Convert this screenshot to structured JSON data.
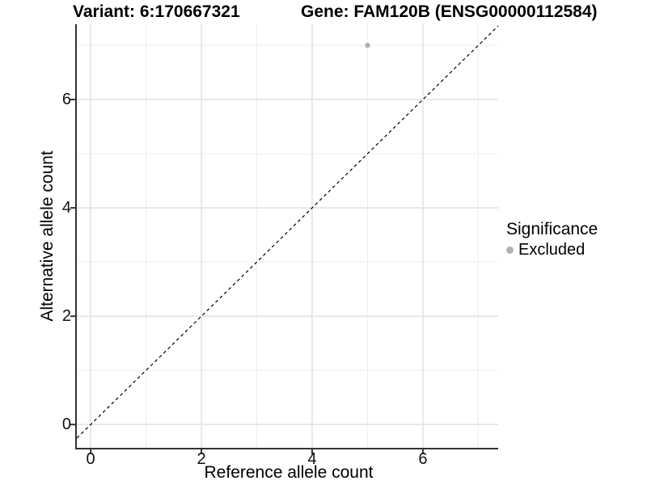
{
  "chart_data": {
    "type": "scatter",
    "title_left": "Variant: 6:170667321",
    "title_right": "Gene: FAM120B (ENSG00000112584)",
    "xlabel": "Reference allele count",
    "ylabel": "Alternative allele count",
    "xlim": [
      -0.25,
      7.36
    ],
    "ylim": [
      -0.43,
      7.39
    ],
    "x_ticks": [
      0,
      2,
      4,
      6
    ],
    "y_ticks": [
      0,
      2,
      4,
      6
    ],
    "x_minor_gridlines": [
      1,
      3,
      5,
      7
    ],
    "y_minor_gridlines": [
      1,
      3,
      5,
      7
    ],
    "grid": true,
    "legend_position": "right",
    "legend": {
      "title": "Significance",
      "entries": [
        {
          "label": "Excluded",
          "color": "#b2b2b2"
        }
      ]
    },
    "series": [
      {
        "name": "Excluded",
        "color": "#b2b2b2",
        "point_radius": 3.2,
        "points": [
          [
            5,
            7
          ]
        ]
      }
    ],
    "identity_line": {
      "style": "dashed",
      "color": "#000000",
      "from": -0.25,
      "to": 7.36
    },
    "colors": {
      "major_gridline": "#e4e4e4",
      "minor_gridline": "#eeeeee",
      "axis_line": "#333333",
      "tick_mark": "#333333",
      "background": "#ffffff"
    }
  }
}
